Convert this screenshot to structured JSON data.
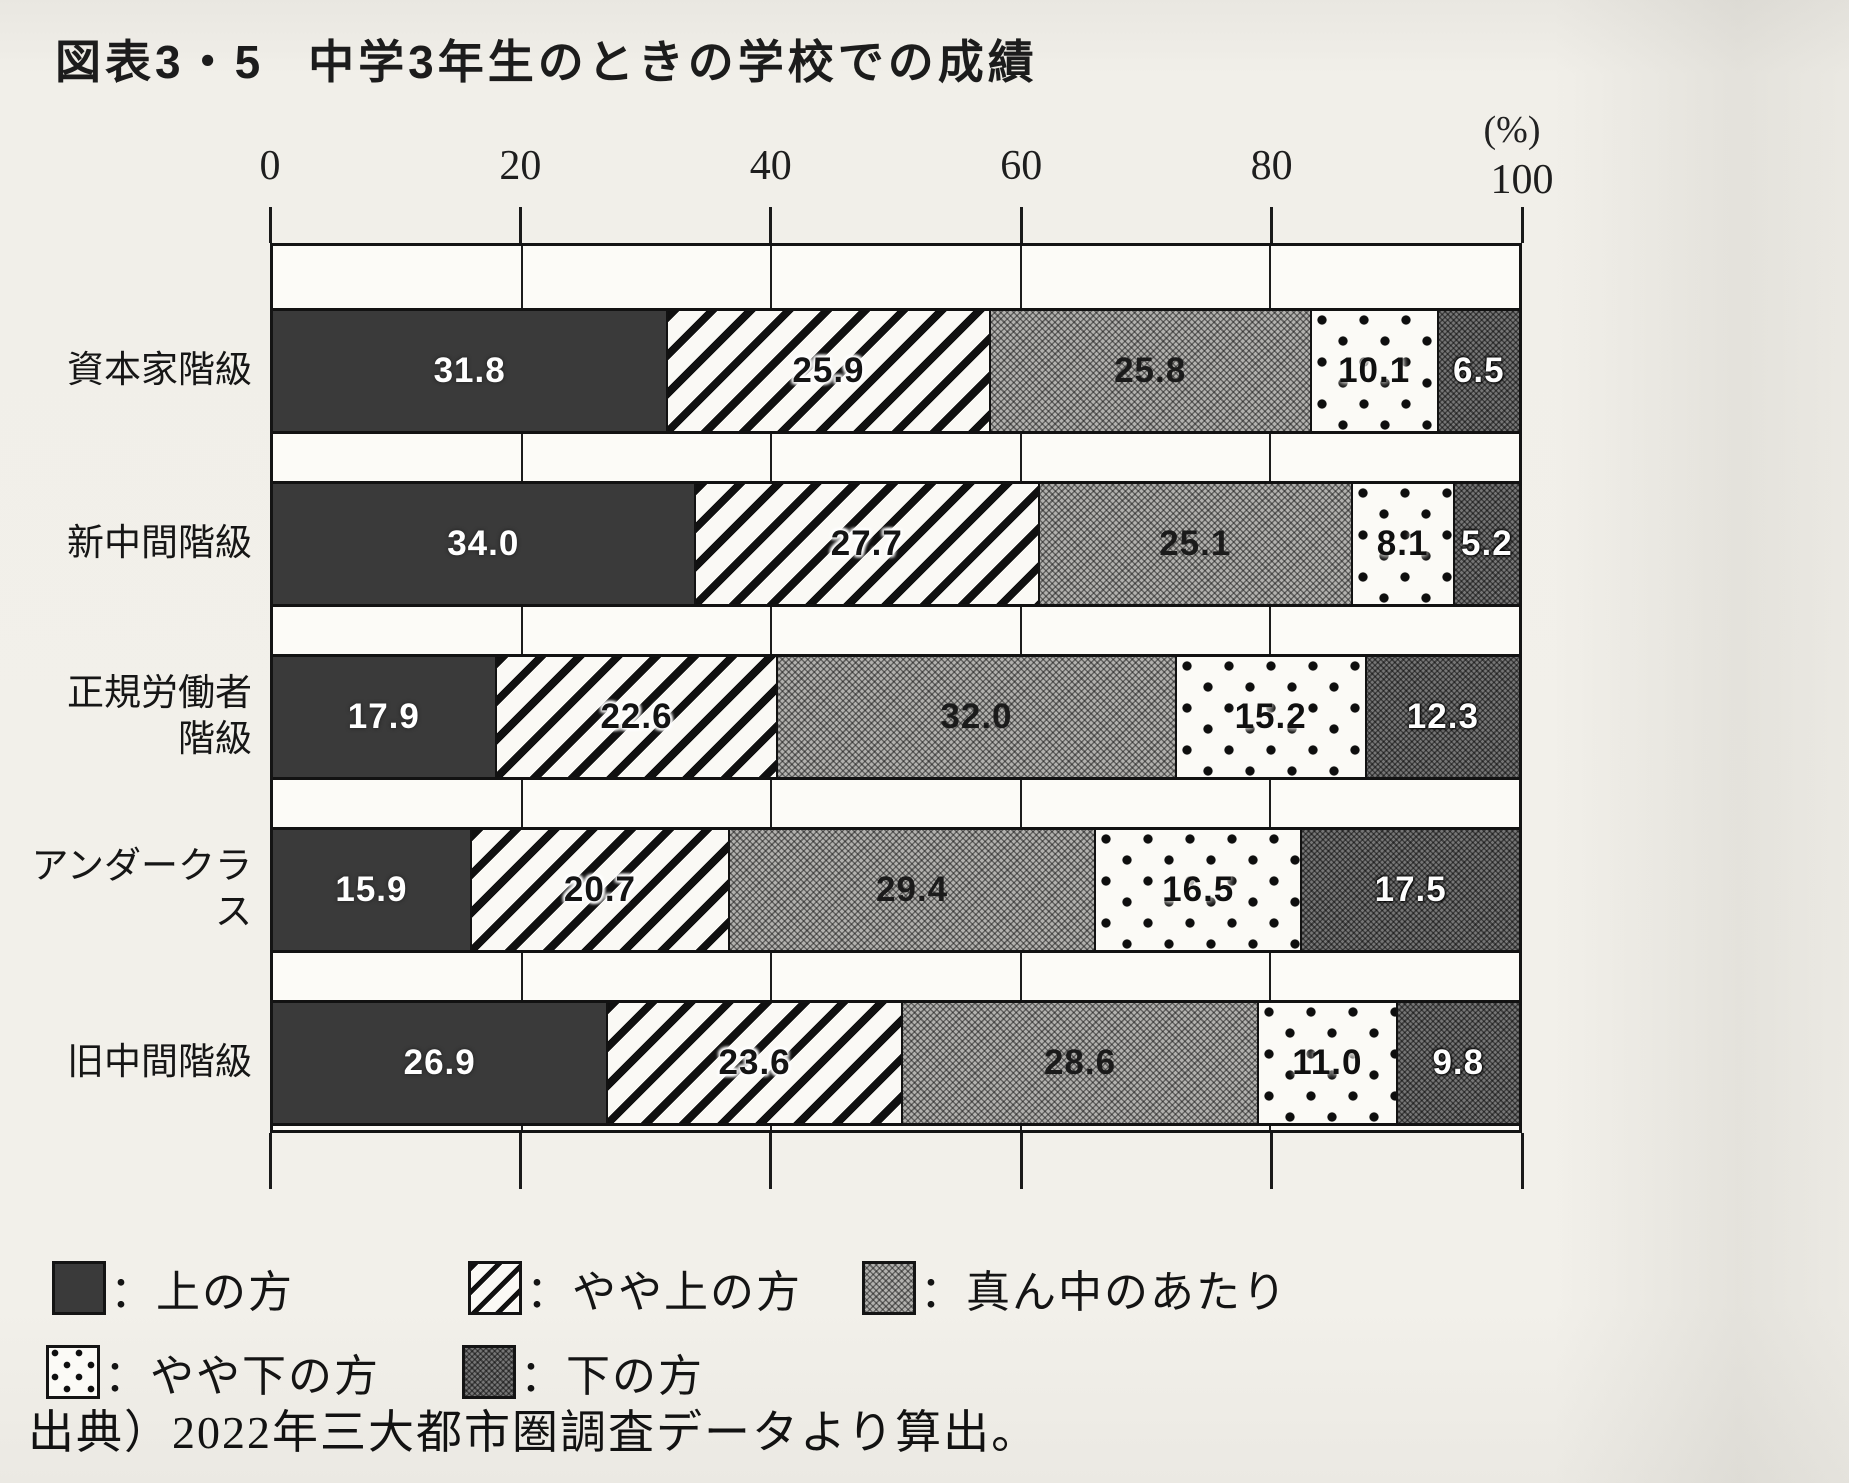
{
  "page": {
    "figure_label": "図表3・5",
    "title": "中学3年生のときの学校での成績",
    "source": "出典）2022年三大都市圏調査データより算出。"
  },
  "axis": {
    "unit_label": "(%)",
    "ticks": [
      0,
      20,
      40,
      60,
      80,
      100
    ],
    "min": 0,
    "max": 100
  },
  "left_axis": {
    "category_labels": [
      "資本家階級",
      "新中間階級",
      "正規労働者\n階級",
      "アンダークラス",
      "旧中間階級"
    ]
  },
  "legend": {
    "colon": "：",
    "items": [
      {
        "label": "上の方",
        "pattern": 0,
        "swatch": "solid-dark"
      },
      {
        "label": "やや上の方",
        "pattern": 1,
        "swatch": "diagonal-hatch"
      },
      {
        "label": "真ん中のあたり",
        "pattern": 2,
        "swatch": "gray-crosshatch"
      },
      {
        "label": "やや下の方",
        "pattern": 3,
        "swatch": "white-dotted"
      },
      {
        "label": "下の方",
        "pattern": 4,
        "swatch": "dark-gray-crosshatch"
      }
    ]
  },
  "chart_data": {
    "type": "bar",
    "orientation": "horizontal",
    "stacked": true,
    "title": "中学3年生のときの学校での成績",
    "xlabel": "(%)",
    "xlim": [
      0,
      100
    ],
    "x_ticks": [
      0,
      20,
      40,
      60,
      80,
      100
    ],
    "grid": "vertical",
    "legend_position": "bottom",
    "categories": [
      "資本家階級",
      "新中間階級",
      "正規労働者階級",
      "アンダークラス",
      "旧中間階級"
    ],
    "series": [
      {
        "name": "上の方",
        "values": [
          31.8,
          34.0,
          17.9,
          15.9,
          26.9
        ]
      },
      {
        "name": "やや上の方",
        "values": [
          25.9,
          27.7,
          22.6,
          20.7,
          23.6
        ]
      },
      {
        "name": "真ん中のあたり",
        "values": [
          25.8,
          25.1,
          32.0,
          29.4,
          28.6
        ]
      },
      {
        "name": "やや下の方",
        "values": [
          10.1,
          8.1,
          15.2,
          16.5,
          11.0
        ]
      },
      {
        "name": "下の方",
        "values": [
          6.5,
          5.2,
          12.3,
          17.5,
          9.8
        ]
      }
    ]
  }
}
